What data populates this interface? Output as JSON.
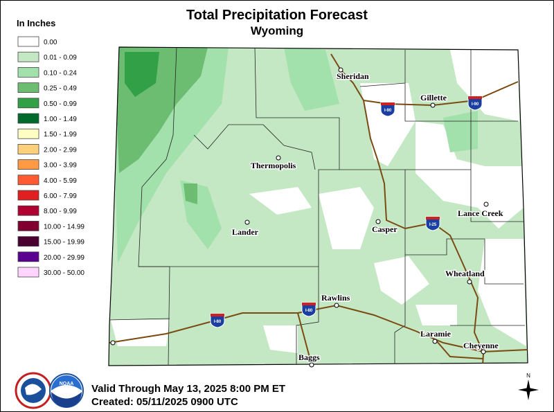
{
  "header": {
    "title": "Total Precipitation Forecast",
    "subtitle": "Wyoming"
  },
  "legend": {
    "title": "In Inches",
    "items": [
      {
        "label": "0.00",
        "color": "#ffffff"
      },
      {
        "label": "0.01 - 0.09",
        "color": "#c4e8c4"
      },
      {
        "label": "0.10 - 0.24",
        "color": "#a2e0ac"
      },
      {
        "label": "0.25 - 0.49",
        "color": "#6cbc72"
      },
      {
        "label": "0.50 - 0.99",
        "color": "#32a046"
      },
      {
        "label": "1.00 - 1.49",
        "color": "#006a2c"
      },
      {
        "label": "1.50 - 1.99",
        "color": "#ffffc4"
      },
      {
        "label": "2.00 - 2.99",
        "color": "#ffd07c"
      },
      {
        "label": "3.00 - 3.99",
        "color": "#ff9a44"
      },
      {
        "label": "4.00 - 5.99",
        "color": "#ff5a32"
      },
      {
        "label": "6.00 - 7.99",
        "color": "#e02020"
      },
      {
        "label": "8.00 - 9.99",
        "color": "#b00032"
      },
      {
        "label": "10.00 - 14.99",
        "color": "#800030"
      },
      {
        "label": "15.00 - 19.99",
        "color": "#4a0030"
      },
      {
        "label": "20.00 - 29.99",
        "color": "#5a0090"
      },
      {
        "label": "30.00 - 50.00",
        "color": "#ffd4ff"
      }
    ]
  },
  "cities": [
    "Sheridan",
    "Gillette",
    "Thermopolis",
    "Lander",
    "Casper",
    "Lance Creek",
    "Wheatland",
    "Rawlins",
    "Laramie",
    "Cheyenne",
    "Baggs"
  ],
  "shields": [
    "I-90",
    "I-90",
    "I-25",
    "I-80",
    "I-80"
  ],
  "footer": {
    "valid": "Valid Through May 13, 2025 8:00 PM ET",
    "created": "Created: 05/11/2025 0900 UTC"
  },
  "logo": "NOAA",
  "compass": "N"
}
